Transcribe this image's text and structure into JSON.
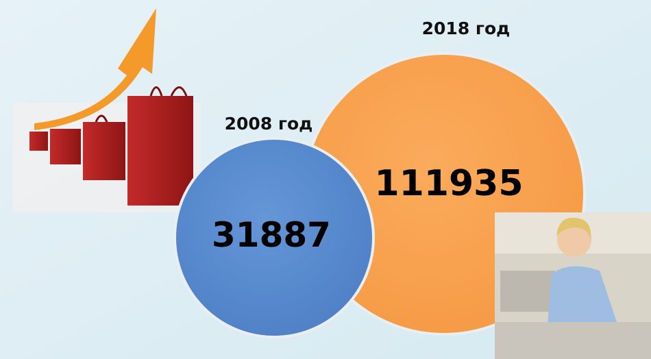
{
  "items": [
    {
      "label": "2008 год",
      "value": 31887
    },
    {
      "label": "2018 год",
      "value": 111935
    }
  ]
}
